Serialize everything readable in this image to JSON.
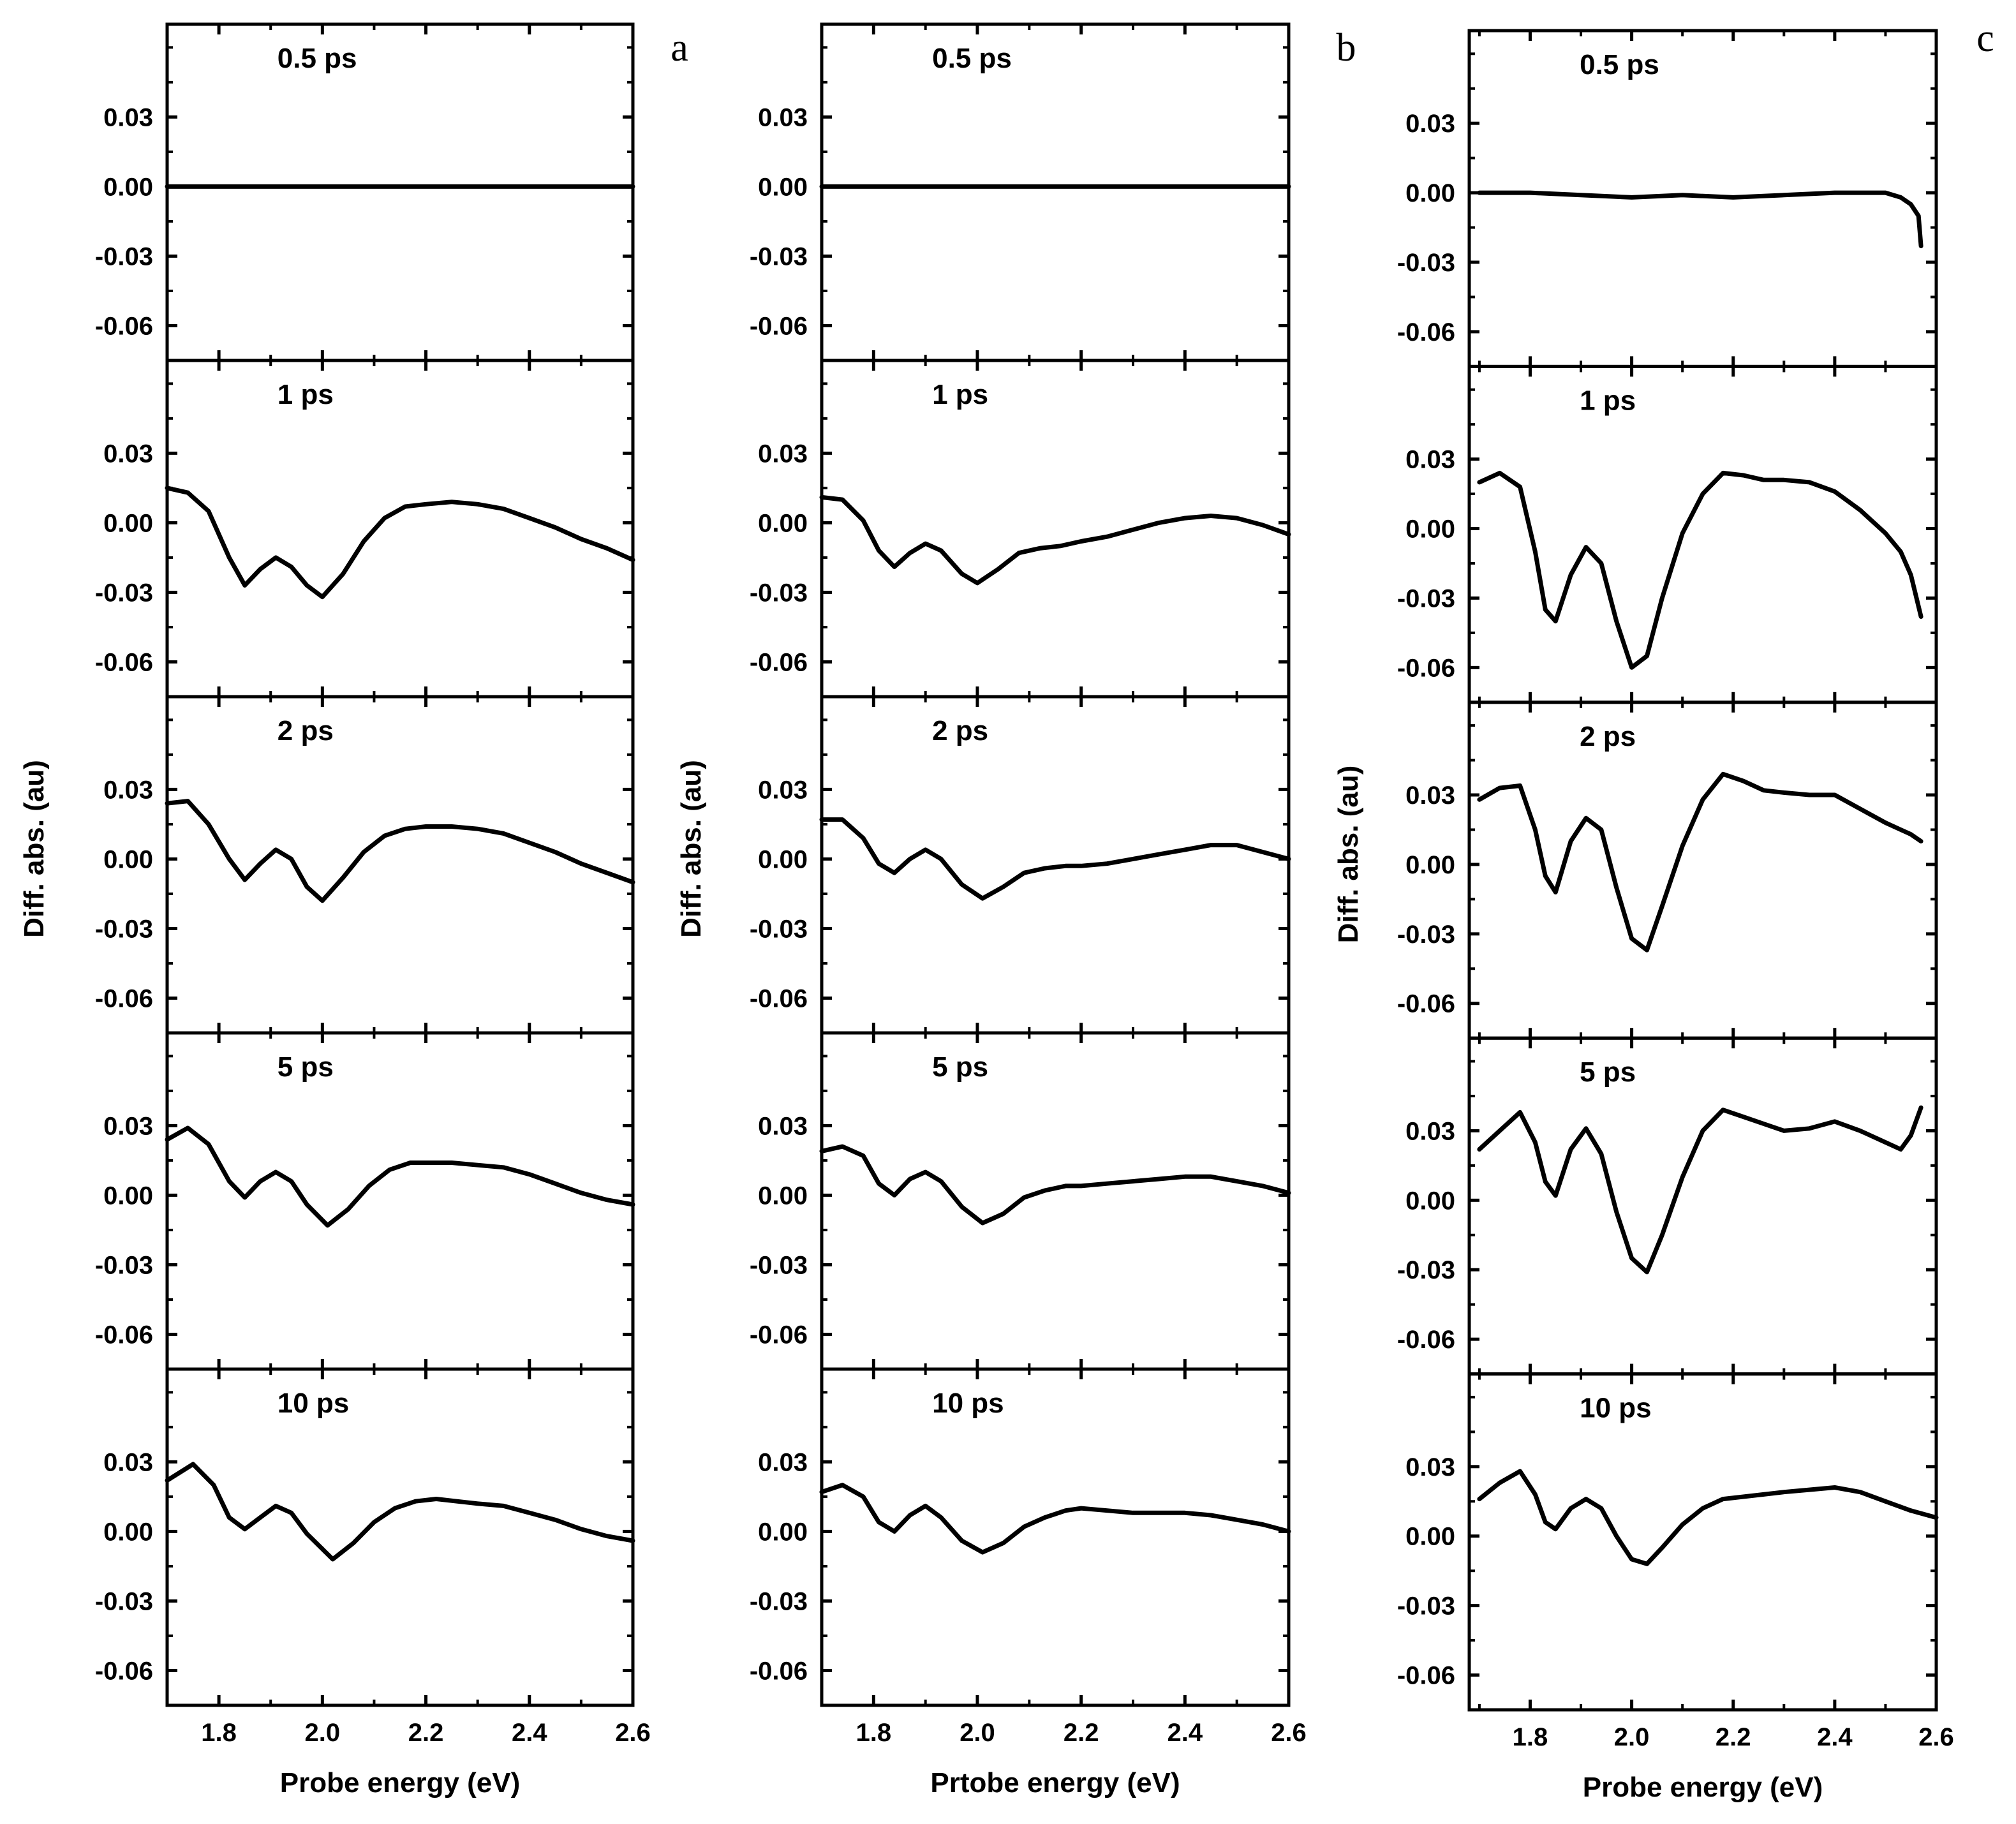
{
  "figure": {
    "columns": [
      {
        "panel_letter": "a",
        "xlabel": "Probe energy (eV)",
        "ylabel": "Diff. abs. (au)"
      },
      {
        "panel_letter": "b",
        "xlabel": "Prtobe energy (eV)",
        "ylabel": "Diff. abs. (au)"
      },
      {
        "panel_letter": "c",
        "xlabel": "Probe energy (eV)",
        "ylabel": "Diff. abs. (au)"
      }
    ]
  },
  "chart_data": [
    {
      "type": "line",
      "panel": "a",
      "xlabel": "Probe energy (eV)",
      "ylabel": "Diff. abs. (au)",
      "xlim": [
        1.7,
        2.6
      ],
      "ylim": [
        -0.075,
        0.07
      ],
      "xticks": [
        "1.8",
        "2.0",
        "2.2",
        "2.4",
        "2.6"
      ],
      "yticks": [
        "0.03",
        "0.00",
        "-0.03",
        "-0.06"
      ],
      "series": [
        {
          "name": "0.5 ps",
          "x": [
            1.7,
            1.9,
            2.1,
            2.3,
            2.5,
            2.6
          ],
          "y": [
            0.0,
            0.0,
            0.0,
            0.0,
            0.0,
            0.0
          ]
        },
        {
          "name": "1 ps",
          "x": [
            1.7,
            1.74,
            1.78,
            1.82,
            1.85,
            1.88,
            1.91,
            1.94,
            1.97,
            2.0,
            2.04,
            2.08,
            2.12,
            2.16,
            2.2,
            2.25,
            2.3,
            2.35,
            2.4,
            2.45,
            2.5,
            2.55,
            2.6
          ],
          "y": [
            0.015,
            0.013,
            0.005,
            -0.015,
            -0.027,
            -0.02,
            -0.015,
            -0.019,
            -0.027,
            -0.032,
            -0.022,
            -0.008,
            0.002,
            0.007,
            0.008,
            0.009,
            0.008,
            0.006,
            0.002,
            -0.002,
            -0.007,
            -0.011,
            -0.016
          ]
        },
        {
          "name": "2 ps",
          "x": [
            1.7,
            1.74,
            1.78,
            1.82,
            1.85,
            1.88,
            1.91,
            1.94,
            1.97,
            2.0,
            2.04,
            2.08,
            2.12,
            2.16,
            2.2,
            2.25,
            2.3,
            2.35,
            2.4,
            2.45,
            2.5,
            2.55,
            2.6
          ],
          "y": [
            0.024,
            0.025,
            0.015,
            0.0,
            -0.009,
            -0.002,
            0.004,
            0.0,
            -0.012,
            -0.018,
            -0.008,
            0.003,
            0.01,
            0.013,
            0.014,
            0.014,
            0.013,
            0.011,
            0.007,
            0.003,
            -0.002,
            -0.006,
            -0.01
          ]
        },
        {
          "name": "5 ps",
          "x": [
            1.7,
            1.74,
            1.78,
            1.82,
            1.85,
            1.88,
            1.91,
            1.94,
            1.97,
            2.01,
            2.05,
            2.09,
            2.13,
            2.17,
            2.2,
            2.25,
            2.3,
            2.35,
            2.4,
            2.45,
            2.5,
            2.55,
            2.6
          ],
          "y": [
            0.024,
            0.029,
            0.022,
            0.006,
            -0.001,
            0.006,
            0.01,
            0.006,
            -0.004,
            -0.013,
            -0.006,
            0.004,
            0.011,
            0.014,
            0.014,
            0.014,
            0.013,
            0.012,
            0.009,
            0.005,
            0.001,
            -0.002,
            -0.004
          ]
        },
        {
          "name": "10 ps",
          "x": [
            1.7,
            1.75,
            1.79,
            1.82,
            1.85,
            1.88,
            1.91,
            1.94,
            1.97,
            2.02,
            2.06,
            2.1,
            2.14,
            2.18,
            2.22,
            2.26,
            2.3,
            2.35,
            2.4,
            2.45,
            2.5,
            2.55,
            2.6
          ],
          "y": [
            0.022,
            0.029,
            0.02,
            0.006,
            0.001,
            0.006,
            0.011,
            0.008,
            -0.001,
            -0.012,
            -0.005,
            0.004,
            0.01,
            0.013,
            0.014,
            0.013,
            0.012,
            0.011,
            0.008,
            0.005,
            0.001,
            -0.002,
            -0.004
          ]
        }
      ]
    },
    {
      "type": "line",
      "panel": "b",
      "xlabel": "Prtobe energy (eV)",
      "ylabel": "Diff. abs. (au)",
      "xlim": [
        1.7,
        2.6
      ],
      "ylim": [
        -0.075,
        0.07
      ],
      "xticks": [
        "1.8",
        "2.0",
        "2.2",
        "2.4",
        "2.6"
      ],
      "yticks": [
        "0.03",
        "0.00",
        "-0.03",
        "-0.06"
      ],
      "series": [
        {
          "name": "0.5 ps",
          "x": [
            1.7,
            1.9,
            2.1,
            2.3,
            2.5,
            2.6
          ],
          "y": [
            0.0,
            0.0,
            0.0,
            0.0,
            0.0,
            0.0
          ]
        },
        {
          "name": "1 ps",
          "x": [
            1.7,
            1.74,
            1.78,
            1.81,
            1.84,
            1.87,
            1.9,
            1.93,
            1.97,
            2.0,
            2.04,
            2.08,
            2.12,
            2.16,
            2.2,
            2.25,
            2.3,
            2.35,
            2.4,
            2.45,
            2.5,
            2.55,
            2.6
          ],
          "y": [
            0.011,
            0.01,
            0.001,
            -0.012,
            -0.019,
            -0.013,
            -0.009,
            -0.012,
            -0.022,
            -0.026,
            -0.02,
            -0.013,
            -0.011,
            -0.01,
            -0.008,
            -0.006,
            -0.003,
            0.0,
            0.002,
            0.003,
            0.002,
            -0.001,
            -0.005
          ]
        },
        {
          "name": "2 ps",
          "x": [
            1.7,
            1.74,
            1.78,
            1.81,
            1.84,
            1.87,
            1.9,
            1.93,
            1.97,
            2.01,
            2.05,
            2.09,
            2.13,
            2.17,
            2.2,
            2.25,
            2.3,
            2.35,
            2.4,
            2.45,
            2.5,
            2.55,
            2.6
          ],
          "y": [
            0.017,
            0.017,
            0.009,
            -0.002,
            -0.006,
            0.0,
            0.004,
            0.0,
            -0.011,
            -0.017,
            -0.012,
            -0.006,
            -0.004,
            -0.003,
            -0.003,
            -0.002,
            0.0,
            0.002,
            0.004,
            0.006,
            0.006,
            0.003,
            0.0
          ]
        },
        {
          "name": "5 ps",
          "x": [
            1.7,
            1.74,
            1.78,
            1.81,
            1.84,
            1.87,
            1.9,
            1.93,
            1.97,
            2.01,
            2.05,
            2.09,
            2.13,
            2.17,
            2.2,
            2.25,
            2.3,
            2.35,
            2.4,
            2.45,
            2.5,
            2.55,
            2.6
          ],
          "y": [
            0.019,
            0.021,
            0.017,
            0.005,
            0.0,
            0.007,
            0.01,
            0.006,
            -0.005,
            -0.012,
            -0.008,
            -0.001,
            0.002,
            0.004,
            0.004,
            0.005,
            0.006,
            0.007,
            0.008,
            0.008,
            0.006,
            0.004,
            0.001
          ]
        },
        {
          "name": "10 ps",
          "x": [
            1.7,
            1.74,
            1.78,
            1.81,
            1.84,
            1.87,
            1.9,
            1.93,
            1.97,
            2.01,
            2.05,
            2.09,
            2.13,
            2.17,
            2.2,
            2.25,
            2.3,
            2.35,
            2.4,
            2.45,
            2.5,
            2.55,
            2.6
          ],
          "y": [
            0.017,
            0.02,
            0.015,
            0.004,
            0.0,
            0.007,
            0.011,
            0.006,
            -0.004,
            -0.009,
            -0.005,
            0.002,
            0.006,
            0.009,
            0.01,
            0.009,
            0.008,
            0.008,
            0.008,
            0.007,
            0.005,
            0.003,
            0.0
          ]
        }
      ]
    },
    {
      "type": "line",
      "panel": "c",
      "xlabel": "Probe energy (eV)",
      "ylabel": "Diff. abs. (au)",
      "xlim": [
        1.68,
        2.6
      ],
      "ylim": [
        -0.075,
        0.07
      ],
      "xticks": [
        "1.8",
        "2.0",
        "2.2",
        "2.4",
        "2.6"
      ],
      "yticks": [
        "0.03",
        "0.00",
        "-0.03",
        "-0.06"
      ],
      "series": [
        {
          "name": "0.5 ps",
          "x": [
            1.7,
            1.8,
            1.9,
            2.0,
            2.1,
            2.2,
            2.3,
            2.4,
            2.45,
            2.5,
            2.53,
            2.55,
            2.565,
            2.57
          ],
          "y": [
            0.0,
            0.0,
            -0.001,
            -0.002,
            -0.001,
            -0.002,
            -0.001,
            0.0,
            0.0,
            0.0,
            -0.002,
            -0.005,
            -0.01,
            -0.023
          ]
        },
        {
          "name": "1 ps",
          "x": [
            1.7,
            1.74,
            1.78,
            1.81,
            1.83,
            1.85,
            1.88,
            1.91,
            1.94,
            1.97,
            2.0,
            2.03,
            2.06,
            2.1,
            2.14,
            2.18,
            2.22,
            2.26,
            2.3,
            2.35,
            2.4,
            2.45,
            2.5,
            2.53,
            2.55,
            2.57
          ],
          "y": [
            0.02,
            0.024,
            0.018,
            -0.01,
            -0.035,
            -0.04,
            -0.02,
            -0.008,
            -0.015,
            -0.04,
            -0.06,
            -0.055,
            -0.03,
            -0.002,
            0.015,
            0.024,
            0.023,
            0.021,
            0.021,
            0.02,
            0.016,
            0.008,
            -0.002,
            -0.01,
            -0.02,
            -0.038
          ]
        },
        {
          "name": "2 ps",
          "x": [
            1.7,
            1.74,
            1.78,
            1.81,
            1.83,
            1.85,
            1.88,
            1.91,
            1.94,
            1.97,
            2.0,
            2.03,
            2.06,
            2.1,
            2.14,
            2.18,
            2.22,
            2.26,
            2.3,
            2.35,
            2.4,
            2.45,
            2.5,
            2.53,
            2.55,
            2.57
          ],
          "y": [
            0.028,
            0.033,
            0.034,
            0.015,
            -0.005,
            -0.012,
            0.01,
            0.02,
            0.015,
            -0.01,
            -0.032,
            -0.037,
            -0.018,
            0.008,
            0.028,
            0.039,
            0.036,
            0.032,
            0.031,
            0.03,
            0.03,
            0.024,
            0.018,
            0.015,
            0.013,
            0.01
          ]
        },
        {
          "name": "5 ps",
          "x": [
            1.7,
            1.74,
            1.78,
            1.81,
            1.83,
            1.85,
            1.88,
            1.91,
            1.94,
            1.97,
            2.0,
            2.03,
            2.06,
            2.1,
            2.14,
            2.18,
            2.22,
            2.26,
            2.3,
            2.35,
            2.4,
            2.45,
            2.5,
            2.53,
            2.55,
            2.57
          ],
          "y": [
            0.022,
            0.03,
            0.038,
            0.025,
            0.008,
            0.002,
            0.022,
            0.031,
            0.02,
            -0.005,
            -0.025,
            -0.031,
            -0.015,
            0.01,
            0.03,
            0.039,
            0.036,
            0.033,
            0.03,
            0.031,
            0.034,
            0.03,
            0.025,
            0.022,
            0.028,
            0.04
          ]
        },
        {
          "name": "10 ps",
          "x": [
            1.7,
            1.74,
            1.78,
            1.81,
            1.83,
            1.85,
            1.88,
            1.91,
            1.94,
            1.97,
            2.0,
            2.03,
            2.06,
            2.1,
            2.14,
            2.18,
            2.22,
            2.26,
            2.3,
            2.35,
            2.4,
            2.45,
            2.5,
            2.55,
            2.6
          ],
          "y": [
            0.016,
            0.023,
            0.028,
            0.018,
            0.006,
            0.003,
            0.012,
            0.016,
            0.012,
            0.0,
            -0.01,
            -0.012,
            -0.005,
            0.005,
            0.012,
            0.016,
            0.017,
            0.018,
            0.019,
            0.02,
            0.021,
            0.019,
            0.015,
            0.011,
            0.008
          ]
        }
      ]
    }
  ]
}
